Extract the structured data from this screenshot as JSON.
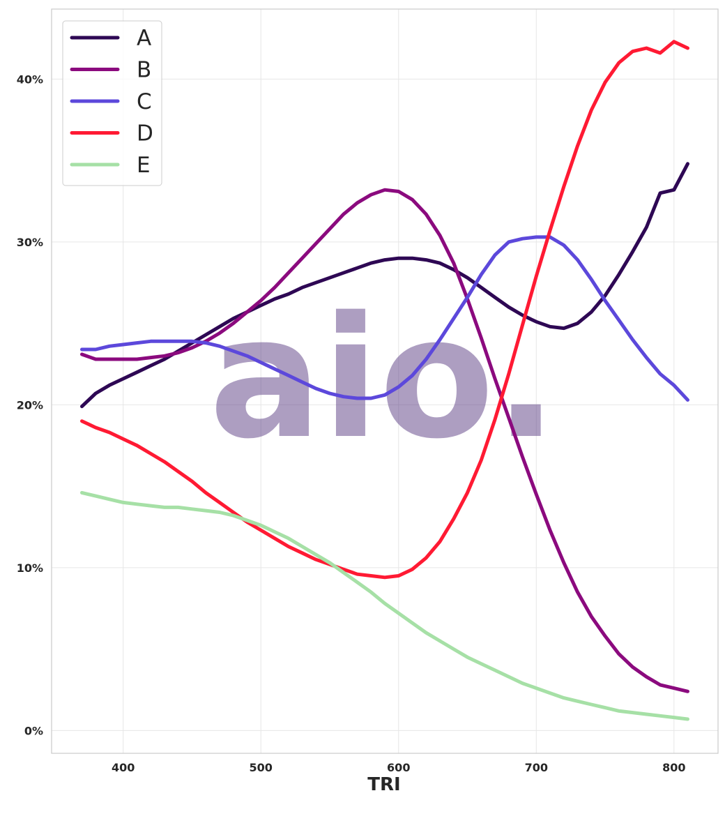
{
  "chart_data": {
    "type": "line",
    "title": "",
    "xlabel": "TRI",
    "ylabel": "",
    "xlim": [
      348,
      832
    ],
    "ylim": [
      -0.014,
      0.443
    ],
    "x_ticks": [
      400,
      500,
      600,
      700,
      800
    ],
    "y_ticks": [
      0.0,
      0.1,
      0.2,
      0.3,
      0.4
    ],
    "y_tick_labels": [
      "0%",
      "10%",
      "20%",
      "30%",
      "40%"
    ],
    "x_tick_labels": [
      "400",
      "500",
      "600",
      "700",
      "800"
    ],
    "grid": true,
    "legend_position": "top-left",
    "watermark": "aio.",
    "x": [
      370,
      380,
      390,
      400,
      410,
      420,
      430,
      440,
      450,
      460,
      470,
      480,
      490,
      500,
      510,
      520,
      530,
      540,
      550,
      560,
      570,
      580,
      590,
      600,
      610,
      620,
      630,
      640,
      650,
      660,
      670,
      680,
      690,
      700,
      710,
      720,
      730,
      740,
      750,
      760,
      770,
      780,
      790,
      800,
      810
    ],
    "series": [
      {
        "name": "A",
        "color": "#2e0854",
        "values": [
          0.199,
          0.207,
          0.212,
          0.216,
          0.22,
          0.224,
          0.228,
          0.233,
          0.238,
          0.243,
          0.248,
          0.253,
          0.257,
          0.261,
          0.265,
          0.268,
          0.272,
          0.275,
          0.278,
          0.281,
          0.284,
          0.287,
          0.289,
          0.29,
          0.29,
          0.289,
          0.287,
          0.283,
          0.278,
          0.272,
          0.266,
          0.26,
          0.255,
          0.251,
          0.248,
          0.247,
          0.25,
          0.257,
          0.267,
          0.28,
          0.294,
          0.309,
          0.33,
          0.332,
          0.348
        ]
      },
      {
        "name": "B",
        "color": "#8b0a7e",
        "values": [
          0.231,
          0.228,
          0.228,
          0.228,
          0.228,
          0.229,
          0.23,
          0.232,
          0.235,
          0.239,
          0.244,
          0.25,
          0.257,
          0.264,
          0.272,
          0.281,
          0.29,
          0.299,
          0.308,
          0.317,
          0.324,
          0.329,
          0.332,
          0.331,
          0.326,
          0.317,
          0.304,
          0.287,
          0.265,
          0.241,
          0.216,
          0.192,
          0.168,
          0.145,
          0.123,
          0.103,
          0.085,
          0.07,
          0.058,
          0.047,
          0.039,
          0.033,
          0.028,
          0.026,
          0.024
        ]
      },
      {
        "name": "C",
        "color": "#5c48db",
        "values": [
          0.234,
          0.234,
          0.236,
          0.237,
          0.238,
          0.239,
          0.239,
          0.239,
          0.239,
          0.238,
          0.236,
          0.233,
          0.23,
          0.226,
          0.222,
          0.218,
          0.214,
          0.21,
          0.207,
          0.205,
          0.204,
          0.204,
          0.206,
          0.211,
          0.218,
          0.228,
          0.24,
          0.253,
          0.266,
          0.28,
          0.292,
          0.3,
          0.302,
          0.303,
          0.303,
          0.298,
          0.289,
          0.277,
          0.264,
          0.252,
          0.24,
          0.229,
          0.219,
          0.212,
          0.203
        ]
      },
      {
        "name": "D",
        "color": "#ff1a33",
        "values": [
          0.19,
          0.186,
          0.183,
          0.179,
          0.175,
          0.17,
          0.165,
          0.159,
          0.153,
          0.146,
          0.14,
          0.134,
          0.128,
          0.123,
          0.118,
          0.113,
          0.109,
          0.105,
          0.102,
          0.099,
          0.096,
          0.095,
          0.094,
          0.095,
          0.099,
          0.106,
          0.116,
          0.13,
          0.146,
          0.166,
          0.191,
          0.219,
          0.249,
          0.279,
          0.307,
          0.334,
          0.359,
          0.381,
          0.398,
          0.41,
          0.417,
          0.419,
          0.416,
          0.423,
          0.419
        ]
      },
      {
        "name": "E",
        "color": "#a6e0a6",
        "values": [
          0.146,
          0.144,
          0.142,
          0.14,
          0.139,
          0.138,
          0.137,
          0.137,
          0.136,
          0.135,
          0.134,
          0.132,
          0.129,
          0.126,
          0.122,
          0.118,
          0.113,
          0.108,
          0.103,
          0.097,
          0.091,
          0.085,
          0.078,
          0.072,
          0.066,
          0.06,
          0.055,
          0.05,
          0.045,
          0.041,
          0.037,
          0.033,
          0.029,
          0.026,
          0.023,
          0.02,
          0.018,
          0.016,
          0.014,
          0.012,
          0.011,
          0.01,
          0.009,
          0.008,
          0.007
        ]
      }
    ]
  }
}
